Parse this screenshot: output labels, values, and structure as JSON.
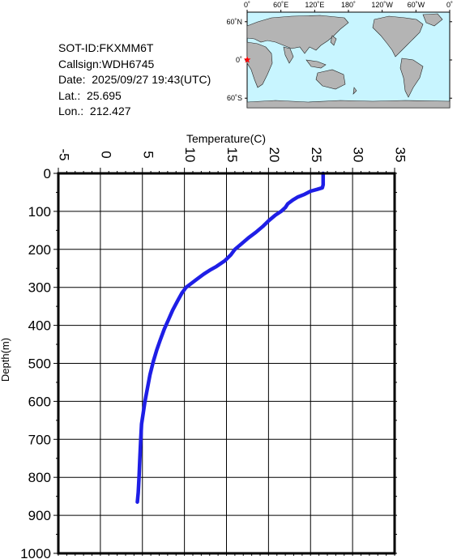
{
  "info": {
    "sot_id": "SOT-ID:FKXMM6T",
    "callsign": "Callsign:WDH6745",
    "date": "Date:  2025/09/27 19:43(UTC)",
    "lat": "Lat.:  25.695",
    "lon": "Lon.:  212.427"
  },
  "map": {
    "lon_labels": [
      "0˚",
      "60˚E",
      "120˚E",
      "180˚",
      "120˚W",
      "60˚W",
      "0˚"
    ],
    "lat_labels": [
      "60˚N",
      "0˚",
      "60˚S"
    ],
    "ocean_color": "#c8f5ff",
    "land_color": "#b4b4b4",
    "marker_color": "#ff0000",
    "marker_icon": "star-icon"
  },
  "chart_data": {
    "type": "line",
    "xlabel": "Temperature(C)",
    "ylabel": "Depth(m)",
    "xlim": [
      -5,
      35
    ],
    "ylim": [
      0,
      1000
    ],
    "y_inverted": true,
    "x_axis_position": "top",
    "grid": true,
    "x_ticks": [
      -5,
      0,
      5,
      10,
      15,
      20,
      25,
      30,
      35
    ],
    "y_ticks": [
      0,
      100,
      200,
      300,
      400,
      500,
      600,
      700,
      800,
      900,
      1000
    ],
    "series": [
      {
        "color": "#1e1ee6",
        "points": [
          [
            26.5,
            0
          ],
          [
            26.5,
            10
          ],
          [
            26.5,
            20
          ],
          [
            26.5,
            30
          ],
          [
            26.4,
            38
          ],
          [
            25.8,
            42
          ],
          [
            25.0,
            47
          ],
          [
            24.3,
            55
          ],
          [
            23.5,
            62
          ],
          [
            22.9,
            70
          ],
          [
            22.3,
            80
          ],
          [
            22.0,
            90
          ],
          [
            21.5,
            100
          ],
          [
            20.8,
            110
          ],
          [
            20.0,
            125
          ],
          [
            19.3,
            140
          ],
          [
            18.5,
            155
          ],
          [
            17.6,
            170
          ],
          [
            16.8,
            185
          ],
          [
            16.0,
            200
          ],
          [
            15.5,
            215
          ],
          [
            14.8,
            230
          ],
          [
            13.8,
            245
          ],
          [
            13.0,
            255
          ],
          [
            12.3,
            265
          ],
          [
            11.5,
            278
          ],
          [
            10.8,
            290
          ],
          [
            10.2,
            300
          ],
          [
            9.7,
            315
          ],
          [
            9.2,
            335
          ],
          [
            8.6,
            360
          ],
          [
            8.1,
            385
          ],
          [
            7.6,
            410
          ],
          [
            7.1,
            440
          ],
          [
            6.7,
            465
          ],
          [
            6.3,
            495
          ],
          [
            5.9,
            530
          ],
          [
            5.6,
            565
          ],
          [
            5.3,
            600
          ],
          [
            5.1,
            630
          ],
          [
            4.9,
            660
          ],
          [
            4.8,
            700
          ],
          [
            4.7,
            750
          ],
          [
            4.6,
            800
          ],
          [
            4.5,
            840
          ],
          [
            4.4,
            865
          ]
        ]
      }
    ]
  }
}
